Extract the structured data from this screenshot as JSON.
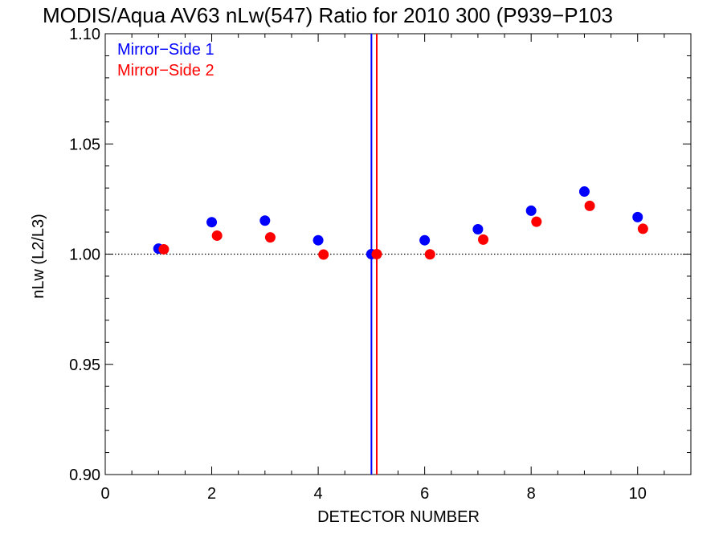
{
  "chart_data": {
    "type": "scatter",
    "title": "MODIS/Aqua AV63 nLw(547) Ratio for 2010 300 (P939−P103",
    "xlabel": "DETECTOR NUMBER",
    "ylabel": "nLw (L2/L3)",
    "xlim": [
      0,
      11
    ],
    "ylim": [
      0.9,
      1.1
    ],
    "x_ticks": [
      0,
      2,
      4,
      6,
      8,
      10
    ],
    "x_tick_labels": [
      "0",
      "2",
      "4",
      "6",
      "8",
      "10"
    ],
    "x_minor_step": 0.5,
    "y_ticks": [
      0.9,
      0.95,
      1.0,
      1.05,
      1.1
    ],
    "y_tick_labels": [
      "0.90",
      "0.95",
      "1.00",
      "1.05",
      "1.10"
    ],
    "y_minor_step": 0.01,
    "reference_line": {
      "y": 1.0,
      "style": "dotted",
      "color": "#000000"
    },
    "vertical_lines": [
      {
        "x": 5.0,
        "color": "#0000ff"
      },
      {
        "x": 5.1,
        "color": "#ff0000"
      }
    ],
    "legend_position": "top-left",
    "grid": false,
    "series": [
      {
        "name": "Mirror−Side 1",
        "color": "#0000ff",
        "x": [
          1,
          2,
          3,
          4,
          5,
          6,
          7,
          8,
          9,
          10
        ],
        "y": [
          1.0025,
          1.0145,
          1.0152,
          1.0063,
          1.0,
          1.0063,
          1.0113,
          1.0197,
          1.0284,
          1.0168
        ]
      },
      {
        "name": "Mirror−Side 2",
        "color": "#ff0000",
        "x": [
          1.1,
          2.1,
          3.1,
          4.1,
          5.1,
          6.1,
          7.1,
          8.1,
          9.1,
          10.1
        ],
        "y": [
          1.0022,
          1.0084,
          1.0076,
          0.9998,
          1.0,
          0.9999,
          1.0066,
          1.0147,
          1.0219,
          1.0115
        ]
      }
    ]
  }
}
